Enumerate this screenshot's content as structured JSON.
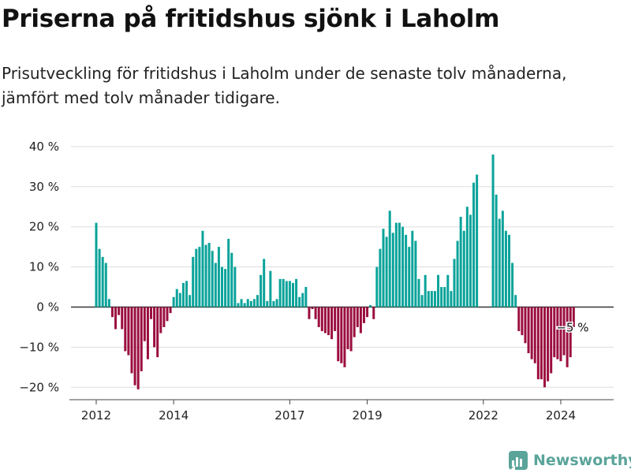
{
  "title": "Priserna på fritidshus sjönk i Laholm",
  "subtitle": "Prisutveckling för fritidshus i Laholm under de senaste tolv månaderna, jämfört med tolv månader tidigare.",
  "brand": {
    "name": "Newsworthy",
    "icon": "newsworthy-logo-icon",
    "color": "#5aa49a"
  },
  "chart_data": {
    "type": "bar",
    "x_start": "2012-01",
    "x_step": "month",
    "x_ticks": [
      "2012",
      "2014",
      "2017",
      "2019",
      "2022",
      "2024"
    ],
    "y_ticks": [
      "40 %",
      "30 %",
      "20 %",
      "10 %",
      "0 %",
      "−10 %",
      "−20 %"
    ],
    "ylim": [
      -23,
      41
    ],
    "unit": "%",
    "colors": {
      "positive": "#0aa39a",
      "negative": "#9b0e3f",
      "zero_line": "#333333",
      "grid": "#dddddd"
    },
    "values": [
      21,
      14.5,
      12.5,
      11,
      2,
      -2.5,
      -5.5,
      -2,
      -5.5,
      -11,
      -12,
      -16.5,
      -19.5,
      -20.5,
      -16,
      -8.5,
      -13,
      -3,
      -10,
      -12.5,
      -6.5,
      -5,
      -3.5,
      -1.5,
      2.5,
      4.5,
      3.5,
      6,
      6.5,
      3,
      12.5,
      14.5,
      15,
      19,
      15.5,
      16,
      14,
      11,
      15,
      10,
      9.5,
      17,
      13.5,
      10,
      1,
      2,
      1,
      2,
      1.5,
      2,
      3,
      8,
      12,
      1.5,
      9,
      1.5,
      2,
      7,
      7,
      6.5,
      6.5,
      6,
      7,
      2.5,
      3.5,
      5,
      -3,
      -0.5,
      -3,
      -5,
      -6,
      -6.5,
      -7,
      -8,
      -6,
      -13.5,
      -14,
      -15,
      -10.5,
      -11,
      -7.5,
      -5,
      -6.5,
      -4,
      -2.5,
      0.5,
      -3,
      10,
      14.5,
      19.5,
      17.5,
      24,
      18.5,
      21,
      21,
      20,
      18,
      15,
      19,
      16.5,
      7,
      3,
      8,
      4,
      4,
      4,
      8,
      5,
      5,
      8,
      4,
      12,
      16.5,
      22.5,
      19,
      25,
      23,
      31,
      33,
      null,
      null,
      null,
      null,
      38,
      28,
      22,
      24,
      19,
      18,
      11,
      3,
      -6,
      -7,
      -9,
      -11.5,
      -13,
      -14,
      -18,
      -18,
      -20,
      -18.5,
      -16.5,
      -12.5,
      -13,
      -13.5,
      -12,
      -15,
      -12.5,
      -5
    ],
    "annotations": [
      {
        "text": "−5 %",
        "value": -5
      }
    ]
  }
}
